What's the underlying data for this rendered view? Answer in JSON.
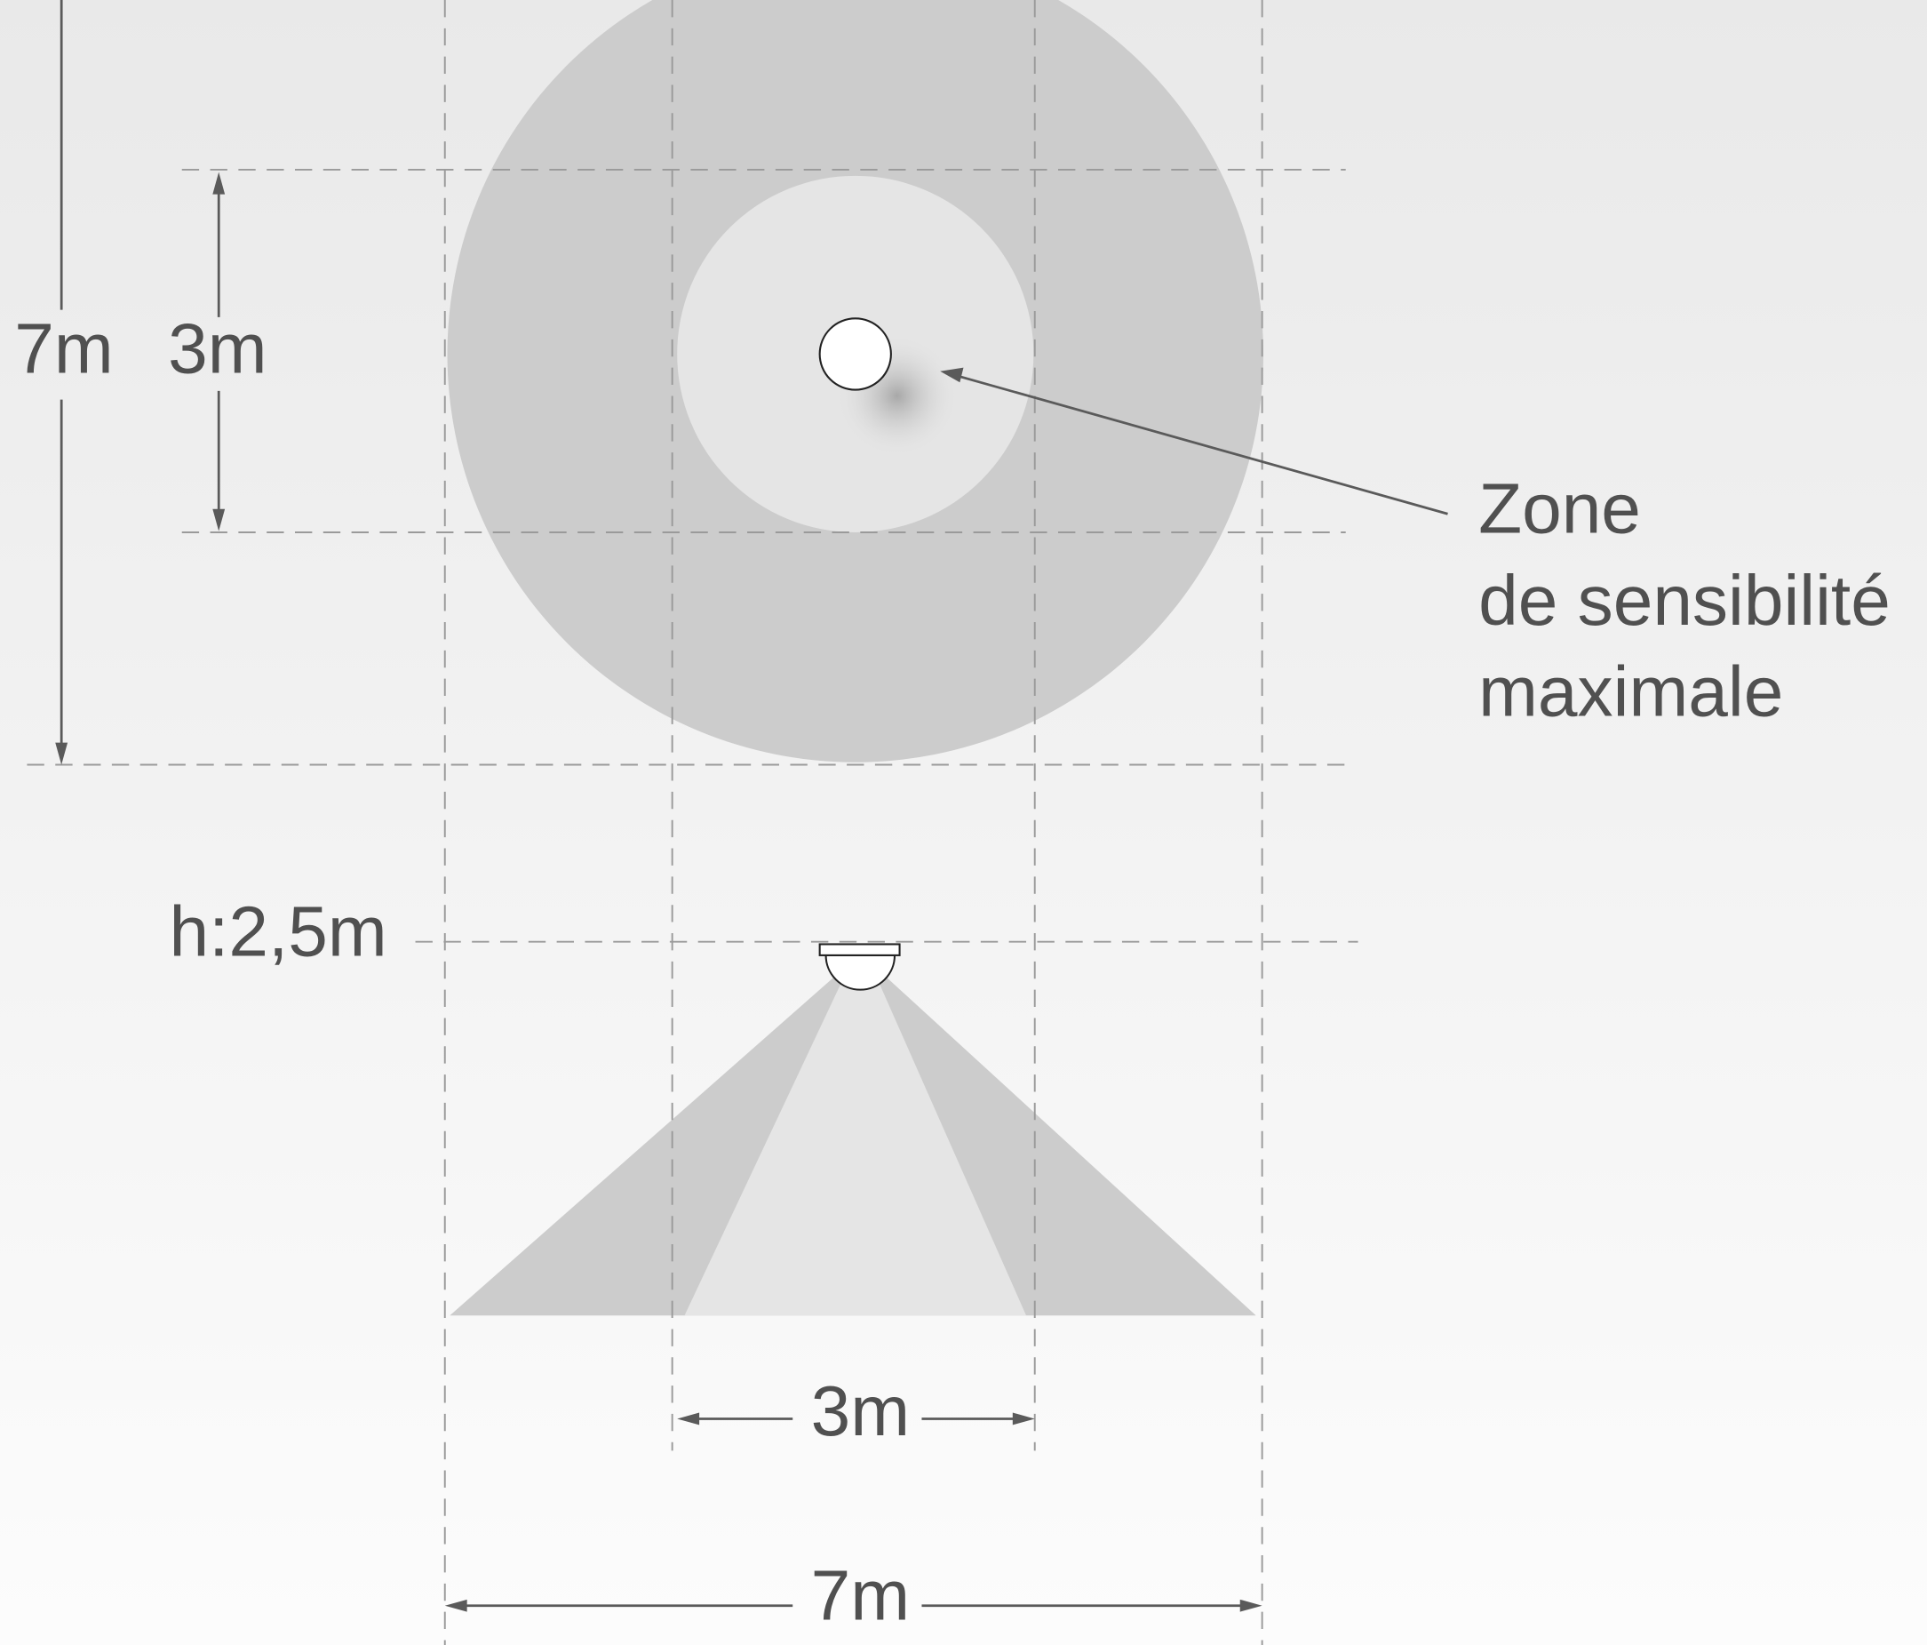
{
  "top_view": {
    "outer_label": "7m",
    "inner_label": "3m"
  },
  "callout": {
    "lines": [
      "Zone",
      "de sensibilité",
      "maximale"
    ]
  },
  "side_view": {
    "height_label": "h:2,5m",
    "inner_width_label": "3m",
    "outer_width_label": "7m"
  }
}
